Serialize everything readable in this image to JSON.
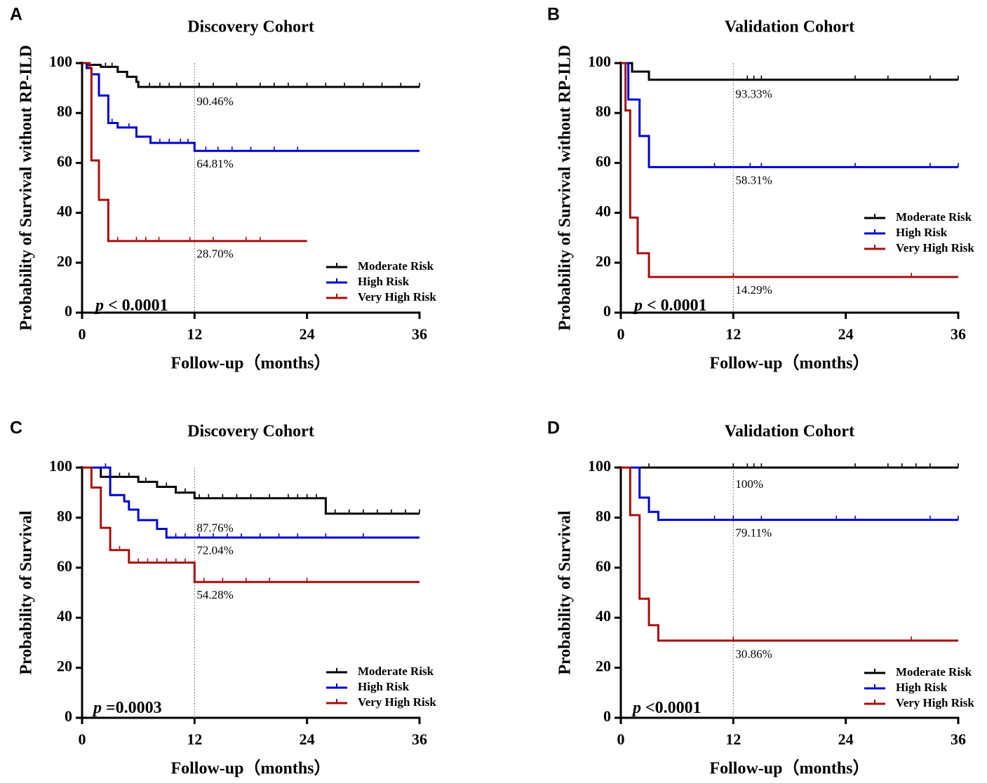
{
  "chart_data": [
    {
      "panel": "A",
      "type": "line",
      "title": "Discovery Cohort",
      "xlabel": "Follow-up（months）",
      "ylabel": "Probability of Survival without RP-ILD",
      "xlim": [
        0,
        36
      ],
      "ylim": [
        0,
        100
      ],
      "xticks": [
        0,
        12,
        24,
        36
      ],
      "yticks": [
        0,
        20,
        40,
        60,
        80,
        100
      ],
      "reference_x": 12,
      "p_label": "p",
      "p_value": "< 0.0001",
      "legend": [
        "Moderate Risk",
        "High Risk",
        "Very High Risk"
      ],
      "series": [
        {
          "name": "Moderate Risk",
          "color": "#000000",
          "annotation": "90.46%",
          "steps": [
            [
              0,
              100
            ],
            [
              0.5,
              99.3
            ],
            [
              2,
              98.5
            ],
            [
              3.8,
              96.5
            ],
            [
              4.8,
              94.5
            ],
            [
              5.8,
              92.5
            ],
            [
              6,
              90.46
            ],
            [
              36,
              90.46
            ]
          ],
          "censored": [
            2.5,
            3.2,
            7.2,
            8.3,
            9.3,
            10.5,
            12.5,
            14,
            16.5,
            19,
            20.5,
            22,
            24,
            26,
            28,
            30,
            32,
            34,
            36
          ]
        },
        {
          "name": "High Risk",
          "color": "#0000CD",
          "annotation": "64.81%",
          "steps": [
            [
              0,
              100
            ],
            [
              0.5,
              98
            ],
            [
              1,
              95.5
            ],
            [
              1.8,
              87
            ],
            [
              2.8,
              76
            ],
            [
              3.8,
              74.2
            ],
            [
              5.8,
              70.5
            ],
            [
              7.3,
              68
            ],
            [
              12,
              64.81
            ],
            [
              36,
              64.81
            ]
          ],
          "censored": [
            3.2,
            5,
            8.3,
            9.3,
            10.5,
            11.3,
            13.2,
            14.5,
            16,
            18,
            20.5,
            23
          ]
        },
        {
          "name": "Very High Risk",
          "color": "#A50F0F",
          "annotation": "28.70%",
          "steps": [
            [
              0,
              100
            ],
            [
              0.8,
              98
            ],
            [
              1,
              61
            ],
            [
              1.8,
              45.2
            ],
            [
              2.8,
              28.7
            ],
            [
              24,
              28.7
            ]
          ],
          "censored": [
            3.8,
            5.8,
            6.8,
            8.2,
            11.5,
            14,
            17.5,
            19
          ]
        }
      ]
    },
    {
      "panel": "B",
      "type": "line",
      "title": "Validation Cohort",
      "xlabel": "Follow-up（months）",
      "ylabel": "Probability of Survival without RP-ILD",
      "xlim": [
        0,
        36
      ],
      "ylim": [
        0,
        100
      ],
      "xticks": [
        0,
        12,
        24,
        36
      ],
      "yticks": [
        0,
        20,
        40,
        60,
        80,
        100
      ],
      "reference_x": 12,
      "p_label": "p",
      "p_value": "< 0.0001",
      "legend": [
        "Moderate Risk",
        "High Risk",
        "Very High Risk"
      ],
      "series": [
        {
          "name": "Moderate Risk",
          "color": "#000000",
          "annotation": "93.33%",
          "steps": [
            [
              0,
              100
            ],
            [
              1.2,
              96.6
            ],
            [
              3,
              93.33
            ],
            [
              36,
              93.33
            ]
          ],
          "censored": [
            13.5,
            14.2,
            15,
            25,
            28.5,
            33,
            36
          ]
        },
        {
          "name": "High Risk",
          "color": "#0000CD",
          "annotation": "58.31%",
          "steps": [
            [
              0,
              100
            ],
            [
              0.8,
              85.4
            ],
            [
              2,
              70.8
            ],
            [
              3,
              58.31
            ],
            [
              36,
              58.31
            ]
          ],
          "censored": [
            10,
            13.8,
            15,
            25,
            33,
            36
          ]
        },
        {
          "name": "Very High Risk",
          "color": "#A50F0F",
          "annotation": "14.29%",
          "steps": [
            [
              0,
              100
            ],
            [
              0.5,
              81
            ],
            [
              1,
              38.1
            ],
            [
              1.8,
              23.8
            ],
            [
              3,
              14.29
            ],
            [
              36,
              14.29
            ]
          ],
          "censored": [
            12,
            31
          ]
        }
      ]
    },
    {
      "panel": "C",
      "type": "line",
      "title": "Discovery Cohort",
      "xlabel": "Follow-up（months）",
      "ylabel": "Probability of Survival",
      "xlim": [
        0,
        36
      ],
      "ylim": [
        0,
        100
      ],
      "xticks": [
        0,
        12,
        24,
        36
      ],
      "yticks": [
        0,
        20,
        40,
        60,
        80,
        100
      ],
      "reference_x": 12,
      "p_label": "p",
      "p_value": "=0.0003",
      "legend": [
        "Moderate Risk",
        "High Risk",
        "Very High Risk"
      ],
      "series": [
        {
          "name": "Moderate Risk",
          "color": "#000000",
          "annotation": "87.76%",
          "steps": [
            [
              0,
              100
            ],
            [
              2,
              96.3
            ],
            [
              6,
              94.3
            ],
            [
              8,
              92.3
            ],
            [
              10,
              90
            ],
            [
              12,
              87.76
            ],
            [
              26,
              81.6
            ],
            [
              36,
              81.6
            ]
          ],
          "censored": [
            3,
            4,
            5,
            6.8,
            9,
            11,
            12.5,
            13.5,
            15,
            16.5,
            18,
            20,
            22,
            23,
            24,
            25,
            27,
            28.5,
            30,
            31.5,
            33,
            34.5,
            36
          ]
        },
        {
          "name": "High Risk",
          "color": "#0000CD",
          "annotation": "72.04%",
          "steps": [
            [
              0,
              100
            ],
            [
              3,
              89
            ],
            [
              4.5,
              86.5
            ],
            [
              5,
              83.2
            ],
            [
              6,
              79
            ],
            [
              8,
              75.5
            ],
            [
              9,
              72.04
            ],
            [
              36,
              72.04
            ]
          ],
          "censored": [
            2.5,
            10,
            11,
            12.5,
            14,
            15.5,
            17,
            19,
            21,
            23,
            26,
            30
          ]
        },
        {
          "name": "Very High Risk",
          "color": "#A50F0F",
          "annotation": "54.28%",
          "steps": [
            [
              0,
              100
            ],
            [
              1,
              92
            ],
            [
              2,
              75.9
            ],
            [
              3,
              67
            ],
            [
              5,
              62
            ],
            [
              12,
              54.28
            ],
            [
              36,
              54.28
            ]
          ],
          "censored": [
            4,
            6,
            7,
            8,
            9,
            10,
            11,
            13,
            15,
            17.5,
            20,
            24
          ]
        }
      ]
    },
    {
      "panel": "D",
      "type": "line",
      "title": "Validation Cohort",
      "xlabel": "Follow-up（months）",
      "ylabel": "Probability of Survival",
      "xlim": [
        0,
        36
      ],
      "ylim": [
        0,
        100
      ],
      "xticks": [
        0,
        12,
        24,
        36
      ],
      "yticks": [
        0,
        20,
        40,
        60,
        80,
        100
      ],
      "reference_x": 12,
      "p_label": "p",
      "p_value": "<0.0001",
      "legend": [
        "Moderate Risk",
        "High Risk",
        "Very High Risk"
      ],
      "series": [
        {
          "name": "Moderate Risk",
          "color": "#000000",
          "annotation": "100%",
          "steps": [
            [
              0,
              100
            ],
            [
              36,
              100
            ]
          ],
          "censored": [
            3,
            12,
            13.5,
            14.2,
            15,
            25,
            28.5,
            30,
            31.5,
            33,
            36
          ]
        },
        {
          "name": "High Risk",
          "color": "#0000CD",
          "annotation": "79.11%",
          "steps": [
            [
              0,
              100
            ],
            [
              2,
              88
            ],
            [
              3,
              82.3
            ],
            [
              4,
              79.11
            ],
            [
              36,
              79.11
            ]
          ],
          "censored": [
            10,
            12,
            15,
            23,
            25,
            33,
            36
          ]
        },
        {
          "name": "Very High Risk",
          "color": "#A50F0F",
          "annotation": "30.86%",
          "steps": [
            [
              0,
              100
            ],
            [
              1,
              81
            ],
            [
              2,
              47.6
            ],
            [
              3,
              37
            ],
            [
              4,
              30.86
            ],
            [
              36,
              30.86
            ]
          ],
          "censored": [
            12,
            31
          ]
        }
      ]
    }
  ]
}
